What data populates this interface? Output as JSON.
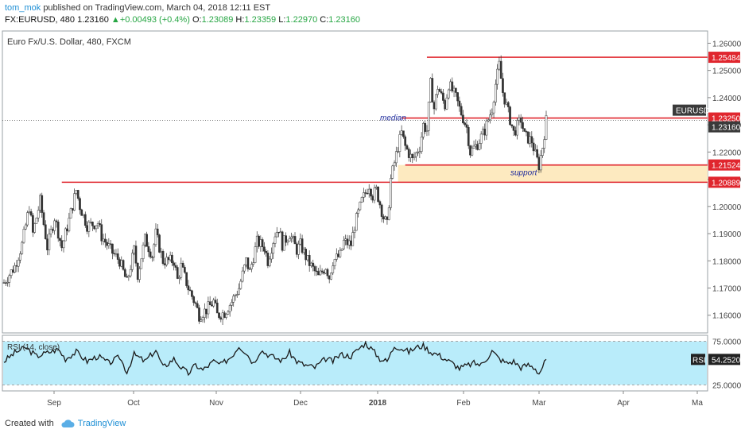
{
  "header": {
    "author": "tom_mok",
    "published": "published on TradingView.com, March 04, 2018 12:11 EST",
    "symbol_line_prefix": "FX:EURUSD, 480",
    "last_price": "1.23160",
    "up_arrow": "▲",
    "change": "+0.00493 (+0.4%)",
    "o_label": "O:",
    "o_value": "1.23089",
    "h_label": "H:",
    "h_value": "1.23359",
    "l_label": "L:",
    "l_value": "1.22970",
    "c_label": "C:",
    "c_value": "1.23160"
  },
  "footer": {
    "created_with": "Created with",
    "brand": "TradingView"
  },
  "chart_data": {
    "type": "candlestick",
    "title": "Euro Fx/U.S. Dollar, 480, FXCM",
    "symbol_tag": "EURUSD",
    "current_price": 1.2316,
    "ylim": [
      1.1535,
      1.2645
    ],
    "y_ticks": [
      1.16,
      1.17,
      1.18,
      1.19,
      1.2,
      1.21,
      1.22,
      1.23,
      1.24,
      1.25,
      1.26
    ],
    "y_tick_labels": [
      "1.16000",
      "1.17000",
      "1.18000",
      "1.19000",
      "1.20000",
      "1.21000",
      "1.22000",
      "1.23000",
      "1.24000",
      "1.25000",
      "1.26000"
    ],
    "x_tick_labels": [
      "Sep",
      "Oct",
      "Nov",
      "Dec",
      "2018",
      "Feb",
      "Mar",
      "Apr",
      "Ma"
    ],
    "price_series": [
      [
        -1,
        1.172
      ],
      [
        2,
        1.178
      ],
      [
        4,
        1.186
      ],
      [
        6,
        1.2
      ],
      [
        7,
        1.19
      ],
      [
        9,
        1.202
      ],
      [
        11,
        1.185
      ],
      [
        13,
        1.196
      ],
      [
        15,
        1.185
      ],
      [
        17,
        1.195
      ],
      [
        19,
        1.206
      ],
      [
        20,
        1.2
      ],
      [
        22,
        1.193
      ],
      [
        25,
        1.194
      ],
      [
        26,
        1.189
      ],
      [
        29,
        1.183
      ],
      [
        31,
        1.18
      ],
      [
        33,
        1.172
      ],
      [
        35,
        1.184
      ],
      [
        36,
        1.175
      ],
      [
        38,
        1.188
      ],
      [
        40,
        1.182
      ],
      [
        41,
        1.19
      ],
      [
        43,
        1.18
      ],
      [
        46,
        1.18
      ],
      [
        47,
        1.173
      ],
      [
        48,
        1.178
      ],
      [
        50,
        1.17
      ],
      [
        52,
        1.164
      ],
      [
        53,
        1.16
      ],
      [
        55,
        1.162
      ],
      [
        57,
        1.165
      ],
      [
        58,
        1.16
      ],
      [
        60,
        1.161
      ],
      [
        62,
        1.165
      ],
      [
        64,
        1.17
      ],
      [
        66,
        1.18
      ],
      [
        67,
        1.176
      ],
      [
        69,
        1.187
      ],
      [
        71,
        1.185
      ],
      [
        72,
        1.18
      ],
      [
        74,
        1.19
      ],
      [
        75,
        1.192
      ],
      [
        76,
        1.186
      ],
      [
        78,
        1.19
      ],
      [
        80,
        1.184
      ],
      [
        81,
        1.186
      ],
      [
        83,
        1.18
      ],
      [
        85,
        1.176
      ],
      [
        86,
        1.174
      ],
      [
        88,
        1.178
      ],
      [
        89,
        1.174
      ],
      [
        90,
        1.18
      ],
      [
        92,
        1.182
      ],
      [
        93,
        1.187
      ],
      [
        95,
        1.186
      ],
      [
        96,
        1.193
      ],
      [
        98,
        1.202
      ],
      [
        100,
        1.208
      ],
      [
        101,
        1.204
      ],
      [
        102,
        1.206
      ],
      [
        104,
        1.196
      ],
      [
        105,
        1.193
      ],
      [
        106,
        1.21
      ],
      [
        108,
        1.222
      ],
      [
        109,
        1.227
      ],
      [
        110,
        1.222
      ],
      [
        112,
        1.217
      ],
      [
        114,
        1.222
      ],
      [
        115,
        1.23
      ],
      [
        116,
        1.228
      ],
      [
        117,
        1.245
      ],
      [
        118,
        1.236
      ],
      [
        119,
        1.244
      ],
      [
        121,
        1.237
      ],
      [
        122,
        1.245
      ],
      [
        124,
        1.24
      ],
      [
        125,
        1.236
      ],
      [
        127,
        1.229
      ],
      [
        128,
        1.22
      ],
      [
        130,
        1.223
      ],
      [
        132,
        1.228
      ],
      [
        134,
        1.236
      ],
      [
        135,
        1.245
      ],
      [
        136,
        1.252
      ],
      [
        137,
        1.242
      ],
      [
        138,
        1.237
      ],
      [
        139,
        1.232
      ],
      [
        140,
        1.227
      ],
      [
        142,
        1.232
      ],
      [
        143,
        1.226
      ],
      [
        145,
        1.224
      ],
      [
        146,
        1.219
      ],
      [
        147,
        1.215
      ],
      [
        148,
        1.222
      ],
      [
        149,
        1.2316
      ]
    ],
    "horizontal_levels": [
      {
        "value": 1.25484,
        "label": "1.25484",
        "x_start": 116
      },
      {
        "value": 1.2325,
        "label": "1.23250",
        "x_start": 109
      },
      {
        "value": 1.21524,
        "label": "1.21524",
        "x_start": 110
      },
      {
        "value": 1.20889,
        "label": "1.20889",
        "x_start": 15
      }
    ],
    "support_zone": {
      "from": 1.20889,
      "to": 1.21524,
      "x_start": 108,
      "label": "support"
    },
    "median_label": "median",
    "current_price_label": "1.23160",
    "rsi": {
      "title": "RSI (14, close)",
      "tag": "RSI",
      "current": 54.252,
      "current_label": "54.2520",
      "ylim": [
        18,
        82
      ],
      "band": [
        25,
        75
      ],
      "tick_labels": [
        "75.0000",
        "25.0000"
      ],
      "values": [
        [
          -1,
          52
        ],
        [
          2,
          62
        ],
        [
          5,
          68
        ],
        [
          8,
          58
        ],
        [
          11,
          62
        ],
        [
          14,
          66
        ],
        [
          16,
          55
        ],
        [
          19,
          63
        ],
        [
          22,
          52
        ],
        [
          25,
          58
        ],
        [
          28,
          50
        ],
        [
          31,
          57
        ],
        [
          33,
          40
        ],
        [
          35,
          60
        ],
        [
          38,
          52
        ],
        [
          41,
          65
        ],
        [
          43,
          45
        ],
        [
          46,
          55
        ],
        [
          48,
          45
        ],
        [
          50,
          38
        ],
        [
          52,
          48
        ],
        [
          54,
          42
        ],
        [
          57,
          52
        ],
        [
          59,
          48
        ],
        [
          62,
          58
        ],
        [
          64,
          70
        ],
        [
          66,
          62
        ],
        [
          68,
          50
        ],
        [
          70,
          65
        ],
        [
          72,
          60
        ],
        [
          74,
          56
        ],
        [
          76,
          53
        ],
        [
          78,
          62
        ],
        [
          80,
          52
        ],
        [
          82,
          48
        ],
        [
          85,
          45
        ],
        [
          88,
          55
        ],
        [
          90,
          52
        ],
        [
          92,
          60
        ],
        [
          95,
          58
        ],
        [
          97,
          66
        ],
        [
          99,
          73
        ],
        [
          101,
          65
        ],
        [
          103,
          55
        ],
        [
          105,
          52
        ],
        [
          107,
          70
        ],
        [
          109,
          67
        ],
        [
          111,
          63
        ],
        [
          113,
          68
        ],
        [
          115,
          70
        ],
        [
          117,
          63
        ],
        [
          119,
          60
        ],
        [
          121,
          55
        ],
        [
          123,
          50
        ],
        [
          125,
          44
        ],
        [
          127,
          47
        ],
        [
          129,
          50
        ],
        [
          131,
          48
        ],
        [
          133,
          58
        ],
        [
          134,
          64
        ],
        [
          136,
          55
        ],
        [
          138,
          50
        ],
        [
          140,
          52
        ],
        [
          142,
          45
        ],
        [
          144,
          48
        ],
        [
          146,
          44
        ],
        [
          147,
          38
        ],
        [
          148,
          46
        ],
        [
          149,
          54
        ]
      ]
    }
  }
}
